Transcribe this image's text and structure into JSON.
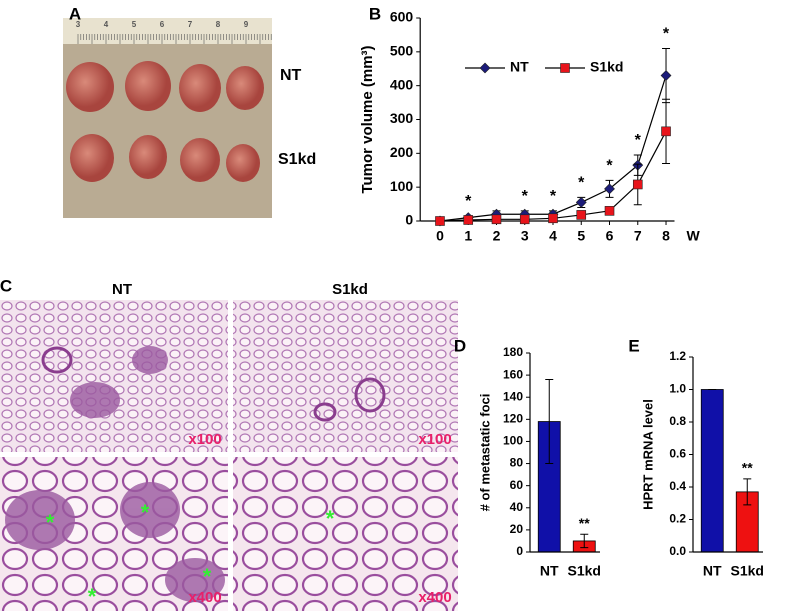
{
  "figure": {
    "panel_labels": [
      "A",
      "B",
      "C",
      "D",
      "E"
    ],
    "photo_groups": [
      "NT",
      "S1kd"
    ],
    "ruler_numbers": [
      "3",
      "4",
      "5",
      "6",
      "7",
      "8",
      "9"
    ],
    "magnifications": [
      "x100",
      "x400"
    ],
    "lesion_marker": "*"
  },
  "chart_data": [
    {
      "type": "line",
      "ylabel": "Tumor volume (mm³)",
      "xlabel": "W",
      "x": [
        0,
        1,
        2,
        3,
        4,
        5,
        6,
        7,
        8
      ],
      "xlim": [
        -0.7,
        8.3
      ],
      "xticks": [
        0,
        1,
        2,
        3,
        4,
        5,
        6,
        7,
        8
      ],
      "ylim": [
        0,
        600
      ],
      "yticks": [
        0,
        100,
        200,
        300,
        400,
        500,
        600
      ],
      "series": [
        {
          "name": "NT",
          "color": "#1c1c7a",
          "marker": "diamond",
          "values": [
            0,
            10,
            20,
            20,
            20,
            55,
            95,
            165,
            430
          ],
          "errors": [
            0,
            5,
            10,
            10,
            10,
            15,
            25,
            30,
            80
          ]
        },
        {
          "name": "S1kd",
          "color": "#e8141b",
          "marker": "square",
          "values": [
            0,
            3,
            5,
            5,
            8,
            18,
            30,
            108,
            265
          ],
          "errors": [
            0,
            2,
            3,
            3,
            3,
            5,
            10,
            60,
            95
          ]
        }
      ],
      "annotations": [
        {
          "x": 1,
          "text": "*"
        },
        {
          "x": 3,
          "text": "*"
        },
        {
          "x": 4,
          "text": "*"
        },
        {
          "x": 5,
          "text": "*"
        },
        {
          "x": 6,
          "text": "*"
        },
        {
          "x": 7,
          "text": "*"
        },
        {
          "x": 8,
          "text": "*"
        }
      ]
    },
    {
      "type": "bar",
      "ylabel": "# of metastatic foci",
      "categories": [
        "NT",
        "S1kd"
      ],
      "values": [
        118,
        10
      ],
      "errors": [
        38,
        6
      ],
      "colors": [
        "#1010a8",
        "#ee1111"
      ],
      "ylim": [
        0,
        180
      ],
      "yticks": [
        0,
        20,
        40,
        60,
        80,
        100,
        120,
        140,
        160,
        180
      ],
      "annotations": [
        {
          "category": 1,
          "text": "**"
        }
      ]
    },
    {
      "type": "bar",
      "ylabel": "HPRT mRNA level",
      "categories": [
        "NT",
        "S1kd"
      ],
      "values": [
        1.0,
        0.37
      ],
      "errors": [
        0,
        0.08
      ],
      "colors": [
        "#1010a8",
        "#ee1111"
      ],
      "ylim": [
        0,
        1.2
      ],
      "yticks": [
        {
          "value": 0,
          "label": "0.0"
        },
        0.2,
        0.4,
        0.6,
        0.8,
        {
          "value": 1,
          "label": "1.0"
        },
        1.2
      ],
      "annotations": [
        {
          "category": 1,
          "text": "**"
        }
      ]
    }
  ]
}
